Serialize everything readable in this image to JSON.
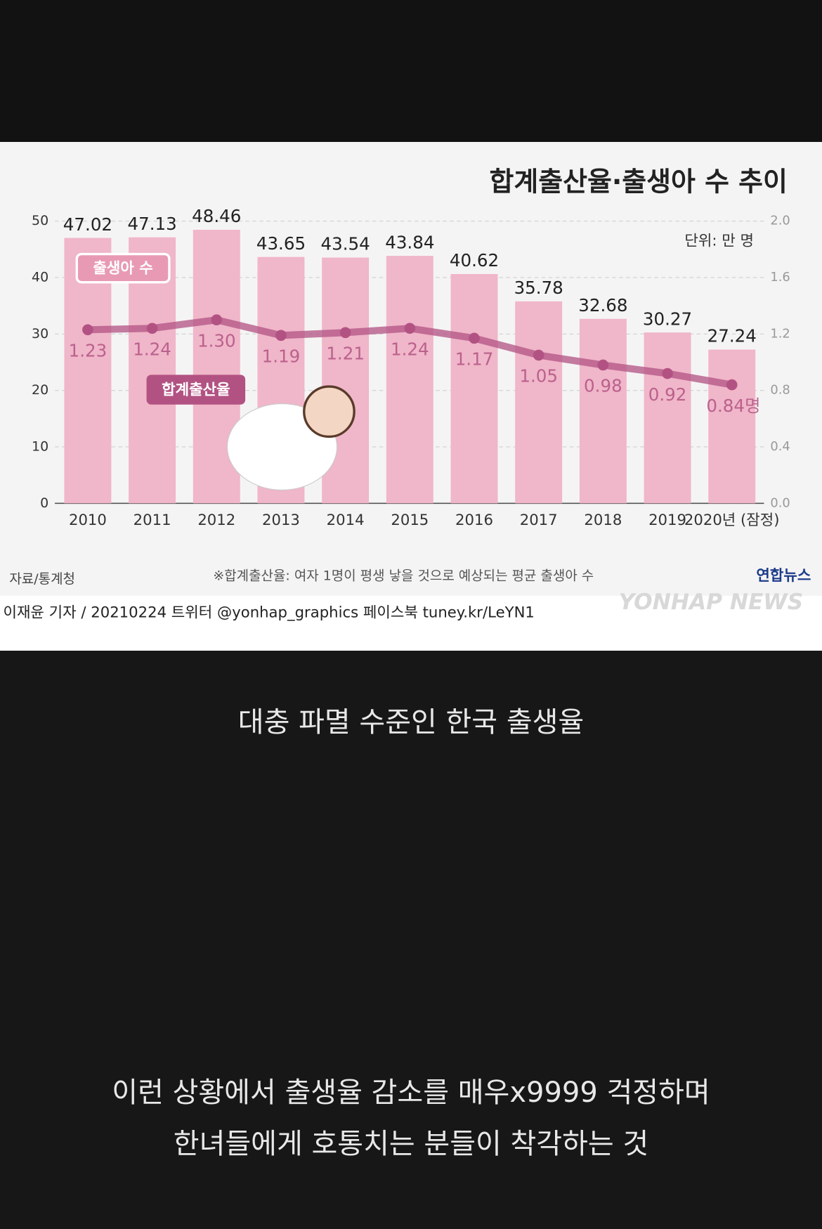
{
  "chart_data": {
    "type": "bar",
    "title": "합계출산율·출생아 수 추이",
    "unit": "단위: 만 명",
    "categories": [
      "2010",
      "2011",
      "2012",
      "2013",
      "2014",
      "2015",
      "2016",
      "2017",
      "2018",
      "2019",
      "2020년 (잠정)"
    ],
    "series": [
      {
        "name": "출생아 수",
        "color": "#f0b6c9",
        "values": [
          47.02,
          47.13,
          48.46,
          43.65,
          43.54,
          43.84,
          40.62,
          35.78,
          32.68,
          30.27,
          27.24
        ]
      },
      {
        "name": "합계출산율",
        "color": "#b25283",
        "axis": "y2",
        "values": [
          1.23,
          1.24,
          1.3,
          1.19,
          1.21,
          1.24,
          1.17,
          1.05,
          0.98,
          0.92,
          0.84
        ],
        "value_labels": [
          "1.23",
          "1.24",
          "1.30",
          "1.19",
          "1.21",
          "1.24",
          "1.17",
          "1.05",
          "0.98",
          "0.92",
          "0.84명"
        ]
      }
    ],
    "ylim": [
      0,
      50
    ],
    "yticks": [
      0,
      10,
      20,
      30,
      40,
      50
    ],
    "y2lim": [
      0,
      2
    ],
    "y2ticks": [
      {
        "value": 0,
        "label": "0.0"
      },
      {
        "value": 0.4,
        "label": "0.4"
      },
      {
        "value": 0.8,
        "label": "0.8"
      },
      {
        "value": 1.2,
        "label": "1.2"
      },
      {
        "value": 1.6,
        "label": "1.6"
      },
      {
        "value": 2,
        "label": "2.0"
      }
    ],
    "grid": true,
    "footnote": "※합계출산율: 여자 1명이 평생 낳을 것으로 예상되는 평균 출생아 수",
    "source": "자료/통계청",
    "brand": "연합뉴스",
    "brand_en": "YONHAP NEWS",
    "credit": "이재윤 기자 / 20210224   트위터 @yonhap_graphics   페이스북 tuney.kr/LeYN1"
  },
  "captions": [
    "대충 파멸 수준인 한국 출생율",
    "이런 상황에서 출생율 감소를 매우x9999 걱정하며",
    "한녀들에게 호통치는 분들이 착각하는 것"
  ]
}
